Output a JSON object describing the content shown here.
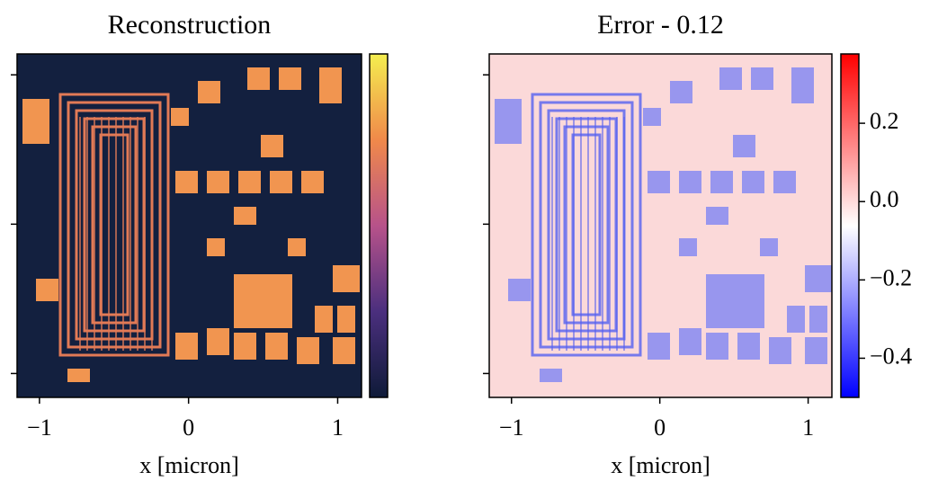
{
  "chart_data": [
    {
      "type": "image",
      "title": "Reconstruction",
      "xlabel": "x [micron]",
      "xlim": [
        -1.15,
        1.16
      ],
      "xticks": [
        {
          "value": -1,
          "label": "−1"
        },
        0,
        1
      ],
      "ylim": [
        -1.16,
        1.14
      ],
      "yticks": [
        -1,
        0,
        1
      ],
      "colormap": [
        "#0e1a38",
        "#4b2f7e",
        "#b7528a",
        "#f0894a",
        "#f4ee4f"
      ]
    },
    {
      "type": "image",
      "title": "Error - 0.12",
      "xlabel": "x [micron]",
      "xlim": [
        -1.15,
        1.16
      ],
      "xticks": [
        {
          "value": -1,
          "label": "−1"
        },
        0,
        1
      ],
      "ylim": [
        -1.16,
        1.14
      ],
      "yticks": [
        -1,
        0,
        1
      ],
      "colormap": [
        "#0000ff",
        "#ffffff",
        "#ff0000"
      ],
      "clim": [
        -0.5,
        0.377
      ],
      "cticks": [
        {
          "value": -0.4,
          "label": "−0.4"
        },
        {
          "value": -0.2,
          "label": "−0.2"
        },
        {
          "value": 0,
          "label": "0.0"
        },
        {
          "value": 0.2,
          "label": "0.2"
        }
      ]
    }
  ]
}
